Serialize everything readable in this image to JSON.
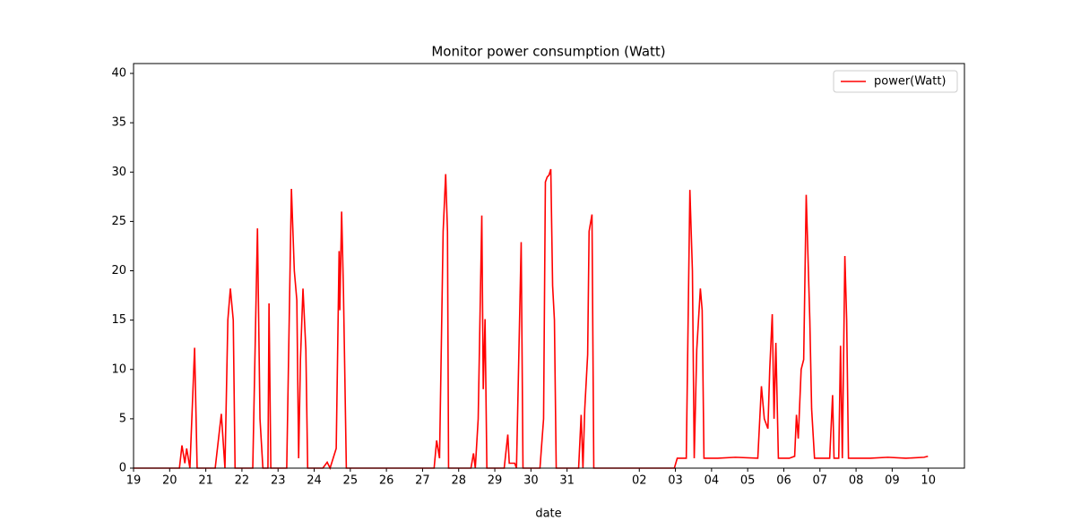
{
  "chart_data": {
    "type": "line",
    "title": "Monitor power consumption (Watt)",
    "x_label": "date",
    "x": [
      0,
      1.27,
      1.34,
      1.42,
      1.47,
      1.56,
      1.69,
      1.76,
      2.26,
      2.43,
      2.53,
      2.61,
      2.68,
      2.76,
      2.81,
      3.3,
      3.43,
      3.5,
      3.58,
      3.72,
      3.75,
      3.8,
      4.24,
      4.37,
      4.45,
      4.52,
      4.57,
      4.62,
      4.69,
      4.77,
      4.82,
      5.24,
      5.36,
      5.44,
      5.61,
      5.69,
      5.71,
      5.76,
      5.81,
      5.89,
      8.32,
      8.39,
      8.47,
      8.57,
      8.64,
      8.69,
      8.72,
      9.34,
      9.41,
      9.46,
      9.54,
      9.64,
      9.68,
      9.73,
      9.78,
      10.26,
      10.36,
      10.4,
      10.55,
      10.6,
      10.73,
      10.78,
      11.25,
      11.35,
      11.4,
      11.45,
      11.5,
      11.55,
      11.6,
      11.65,
      11.7,
      12.32,
      12.39,
      12.44,
      12.49,
      12.57,
      12.61,
      12.69,
      12.74,
      14.97,
      15.05,
      15.3,
      15.4,
      15.47,
      15.52,
      15.59,
      15.69,
      15.74,
      15.79,
      16.17,
      16.66,
      17.28,
      17.38,
      17.46,
      17.56,
      17.61,
      17.68,
      17.73,
      17.78,
      17.85,
      18.15,
      18.3,
      18.35,
      18.4,
      18.48,
      18.55,
      18.62,
      18.72,
      18.77,
      18.85,
      19.27,
      19.35,
      19.39,
      19.52,
      19.57,
      19.62,
      19.69,
      19.74,
      19.79,
      20.39,
      20.88,
      21.38,
      21.88,
      21.99
    ],
    "series": [
      {
        "name": "power(Watt)",
        "color": "#ff0000",
        "values": [
          0,
          0,
          2.3,
          0.5,
          2,
          0,
          12.2,
          0,
          0,
          5.5,
          0,
          15,
          18.2,
          15,
          0,
          0,
          24.3,
          5,
          0,
          0,
          16.7,
          0,
          0,
          28.3,
          20,
          17,
          1,
          11,
          18.2,
          12,
          0,
          0,
          0.6,
          0,
          2,
          22,
          16,
          26,
          18,
          0,
          0,
          2.8,
          1,
          24,
          29.8,
          24,
          0,
          0,
          1.5,
          0,
          5,
          25.6,
          8,
          15.1,
          0,
          0,
          3.4,
          0.5,
          0.5,
          0,
          22.9,
          0,
          0,
          5,
          29,
          29.5,
          29.7,
          30.3,
          18.5,
          15,
          0,
          0,
          5.4,
          0,
          6,
          11.5,
          24,
          25.7,
          0,
          0,
          1,
          1,
          28.2,
          20,
          1,
          12,
          18.2,
          16,
          1,
          1,
          1.1,
          1,
          8.3,
          5,
          4,
          10,
          15.6,
          5,
          12.7,
          1,
          1,
          1.2,
          5.4,
          3,
          10,
          11,
          27.7,
          15,
          6,
          1,
          1,
          7.4,
          1,
          1,
          12.4,
          1,
          21.5,
          15,
          1,
          1,
          1.1,
          1,
          1.1,
          1.2
        ]
      }
    ],
    "xlim": [
      0,
      23
    ],
    "ylim": [
      0,
      41
    ],
    "xticks": [
      {
        "value": 0,
        "label": "19"
      },
      {
        "value": 1,
        "label": "20"
      },
      {
        "value": 2,
        "label": "21"
      },
      {
        "value": 3,
        "label": "22"
      },
      {
        "value": 4,
        "label": "23"
      },
      {
        "value": 5,
        "label": "24"
      },
      {
        "value": 6,
        "label": "25"
      },
      {
        "value": 7,
        "label": "26"
      },
      {
        "value": 8,
        "label": "27"
      },
      {
        "value": 9,
        "label": "28"
      },
      {
        "value": 10,
        "label": "29"
      },
      {
        "value": 11,
        "label": "30"
      },
      {
        "value": 12,
        "label": "31"
      },
      {
        "value": 14,
        "label": "02"
      },
      {
        "value": 15,
        "label": "03"
      },
      {
        "value": 16,
        "label": "04"
      },
      {
        "value": 17,
        "label": "05"
      },
      {
        "value": 18,
        "label": "06"
      },
      {
        "value": 19,
        "label": "07"
      },
      {
        "value": 20,
        "label": "08"
      },
      {
        "value": 21,
        "label": "09"
      },
      {
        "value": 22,
        "label": "10"
      }
    ],
    "yticks": [
      0,
      5,
      10,
      15,
      20,
      25,
      30,
      35,
      40
    ],
    "legend": "upper right",
    "grid": false
  }
}
